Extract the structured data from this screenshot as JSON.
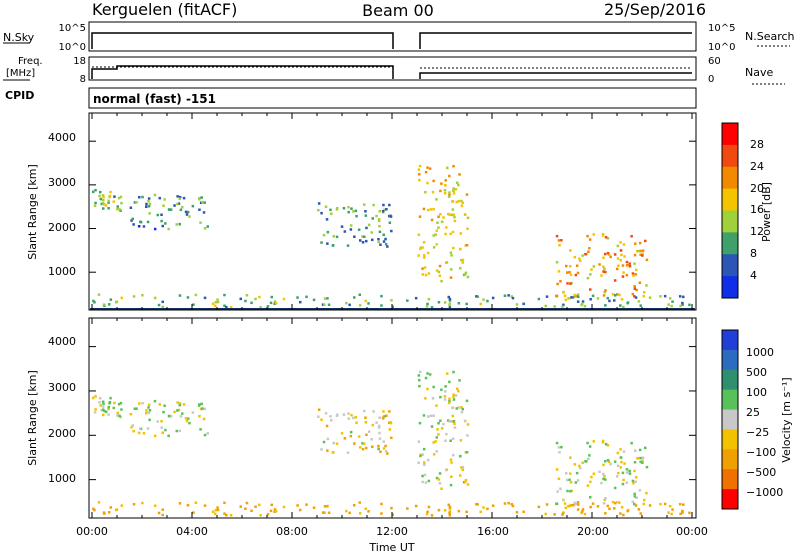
{
  "header": {
    "station": "Kerguelen (fitACF)",
    "beam": "Beam 00",
    "date": "25/Sep/2016"
  },
  "mode_label": "normal (fast) -151",
  "nsky_panel": {
    "left_label": "N.Sky",
    "right_label": "N.Search",
    "left_ticks": [
      "10^5",
      "10^0"
    ],
    "right_ticks": [
      "10^5",
      "10^0"
    ]
  },
  "freq_panel": {
    "left_label_line1": "Freq.",
    "left_label_line2": "[MHz]",
    "right_label": "Nave",
    "cpid_label": "CPID",
    "left_ticks": [
      "18",
      "8"
    ],
    "right_ticks": [
      "60",
      "0"
    ]
  },
  "x_axis": {
    "label": "Time UT",
    "ticks": [
      "00:00",
      "04:00",
      "08:00",
      "12:00",
      "16:00",
      "20:00",
      "00:00"
    ]
  },
  "power_colorbar": {
    "label": "Power [dB]",
    "ticks": [
      "28",
      "24",
      "20",
      "16",
      "12",
      "8",
      "4"
    ],
    "colors": [
      "#ff0000",
      "#f04a10",
      "#f28a00",
      "#f5c400",
      "#9fd13a",
      "#3fa06a",
      "#2c56b5",
      "#0f2ee8"
    ]
  },
  "velocity_colorbar": {
    "label": "Velocity [m s⁻¹]",
    "ticks": [
      "1000",
      "500",
      "100",
      "25",
      "−25",
      "−100",
      "−500",
      "−1000"
    ],
    "colors": [
      "#1f3fd6",
      "#2b6cc0",
      "#2f8f6e",
      "#59c15a",
      "#c8c8c8",
      "#f2c200",
      "#f0a000",
      "#f07000",
      "#ff0000"
    ]
  },
  "chart_data": [
    {
      "type": "heatmap",
      "title": "",
      "xlabel": "",
      "ylabel": "Slant Range [km]",
      "xlim": [
        "00:00",
        "24:00"
      ],
      "ylim": [
        180,
        4600
      ],
      "y_ticks": [
        "4000",
        "3000",
        "2000",
        "1000"
      ],
      "color_variable": "Power [dB]",
      "color_range": [
        0,
        30
      ],
      "echo_regions": [
        {
          "t_start": 0.0,
          "t_end": 1.2,
          "r_min": 2400,
          "r_max": 2900,
          "level": 11
        },
        {
          "t_start": 1.5,
          "t_end": 4.6,
          "r_min": 2000,
          "r_max": 2800,
          "level": 8
        },
        {
          "t_start": 9.0,
          "t_end": 12.0,
          "r_min": 1600,
          "r_max": 2600,
          "level": 8
        },
        {
          "t_start": 13.0,
          "t_end": 15.0,
          "r_min": 800,
          "r_max": 3500,
          "level": 17
        },
        {
          "t_start": 18.5,
          "t_end": 22.2,
          "r_min": 400,
          "r_max": 1900,
          "level": 20
        },
        {
          "t_start": 0.0,
          "t_end": 24.0,
          "r_min": 200,
          "r_max": 500,
          "level": 10
        }
      ]
    },
    {
      "type": "heatmap",
      "title": "",
      "xlabel": "Time UT",
      "ylabel": "Slant Range [km]",
      "xlim": [
        "00:00",
        "24:00"
      ],
      "ylim": [
        180,
        4600
      ],
      "y_ticks": [
        "4000",
        "3000",
        "2000",
        "1000"
      ],
      "color_variable": "Velocity [m s⁻¹]",
      "color_range": [
        -1000,
        1000
      ],
      "echo_regions": [
        {
          "t_start": 0.0,
          "t_end": 1.2,
          "r_min": 2400,
          "r_max": 2900,
          "level": 0
        },
        {
          "t_start": 1.5,
          "t_end": 4.6,
          "r_min": 2000,
          "r_max": 2800,
          "level": 0
        },
        {
          "t_start": 9.0,
          "t_end": 12.0,
          "r_min": 1600,
          "r_max": 2600,
          "level": -50
        },
        {
          "t_start": 13.0,
          "t_end": 15.0,
          "r_min": 800,
          "r_max": 3500,
          "level": 0
        },
        {
          "t_start": 18.5,
          "t_end": 22.2,
          "r_min": 400,
          "r_max": 1900,
          "level": 0
        },
        {
          "t_start": 0.0,
          "t_end": 24.0,
          "r_min": 200,
          "r_max": 500,
          "level": -150
        }
      ]
    }
  ]
}
